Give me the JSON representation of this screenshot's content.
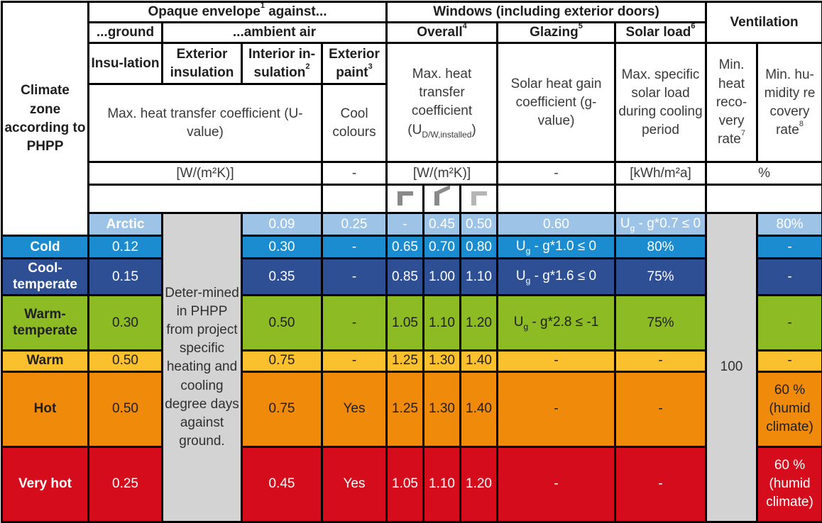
{
  "header": {
    "climate_zone": "Climate zone according to PHPP",
    "opaque": "Opaque envelope",
    "opaque_sup": "1",
    "opaque_suffix": " against...",
    "windows": "Windows (including exterior doors)",
    "ventilation": "Ventilation",
    "ground": "...ground",
    "ambient": "...ambient air",
    "overall": "Overall",
    "overall_sup": "4",
    "glazing": "Glazing",
    "glazing_sup": "5",
    "solar_load": "Solar load",
    "solar_load_sup": "6",
    "insulation": "Insu-lation",
    "exterior_insulation": "Exterior insulation",
    "interior_insulation": "Interior in-sulation",
    "interior_insulation_sup": "2",
    "exterior_paint": "Exterior paint",
    "exterior_paint_sup": "3",
    "max_u_value": "Max. heat transfer coefficient (U-value)",
    "cool_colours": "Cool colours",
    "window_u_pre": "Max. heat transfer coefficient (U",
    "window_u_sub": "D/W,installed",
    "window_u_post": ")",
    "shgc": "Solar heat gain coefficient (g-value)",
    "max_solar_load": "Max. specific solar load during cooling period",
    "min_heat_recovery": "Min. heat reco-very rate",
    "min_heat_recovery_sup": "7",
    "min_humidity_recovery": "Min. hu-midity re covery rate",
    "min_humidity_recovery_sup": "8",
    "units_u": "[W/(m²K)]",
    "units_dash": "-",
    "units_window_u": "[W/(m²K)]",
    "units_glazing": "-",
    "units_solar": "[kWh/m²a]",
    "units_vent": "%"
  },
  "icons": [
    "window-corner-icon-1",
    "window-corner-icon-2",
    "window-corner-icon-3"
  ],
  "ground_note": "Deter-mined in PHPP from project specific heating and cooling degree days against ground.",
  "solar_load_value": "100",
  "rows": [
    {
      "zone": "Arctic",
      "ext": "0.09",
      "int": "0.25",
      "paint": "-",
      "w1": "0.45",
      "w2": "0.50",
      "w3": "0.60",
      "glazing": "Ug - g*0.7 ≤ 0",
      "heat": "80%",
      "hum": "-"
    },
    {
      "zone": "Cold",
      "ext": "0.12",
      "int": "0.30",
      "paint": "-",
      "w1": "0.65",
      "w2": "0.70",
      "w3": "0.80",
      "glazing": "Ug - g*1.0 ≤ 0",
      "heat": "80%",
      "hum": "-"
    },
    {
      "zone": "Cool-temperate",
      "ext": "0.15",
      "int": "0.35",
      "paint": "-",
      "w1": "0.85",
      "w2": "1.00",
      "w3": "1.10",
      "glazing": "Ug - g*1.6 ≤ 0",
      "heat": "75%",
      "hum": "-"
    },
    {
      "zone": "Warm-temperate",
      "ext": "0.30",
      "int": "0.50",
      "paint": "-",
      "w1": "1.05",
      "w2": "1.10",
      "w3": "1.20",
      "glazing": "Ug - g*2.8 ≤ -1",
      "heat": "75%",
      "hum": "-"
    },
    {
      "zone": "Warm",
      "ext": "0.50",
      "int": "0.75",
      "paint": "-",
      "w1": "1.25",
      "w2": "1.30",
      "w3": "1.40",
      "glazing": "-",
      "heat": "-",
      "hum": "-"
    },
    {
      "zone": "Hot",
      "ext": "0.50",
      "int": "0.75",
      "paint": "Yes",
      "w1": "1.25",
      "w2": "1.30",
      "w3": "1.40",
      "glazing": "-",
      "heat": "-",
      "hum": "60 % (humid climate)"
    },
    {
      "zone": "Very hot",
      "ext": "0.25",
      "int": "0.45",
      "paint": "Yes",
      "w1": "1.05",
      "w2": "1.10",
      "w3": "1.20",
      "glazing": "-",
      "heat": "-",
      "hum": "60 % (humid climate)"
    }
  ],
  "colors": {
    "arctic": "#9dc3e6",
    "cold": "#1a8ccf",
    "cool_temperate": "#2f4f95",
    "warm_temperate": "#8dbb24",
    "warm": "#fbc02d",
    "hot": "#f08a0a",
    "very_hot": "#d50c1c",
    "ground_column": "#d3d3d3"
  }
}
